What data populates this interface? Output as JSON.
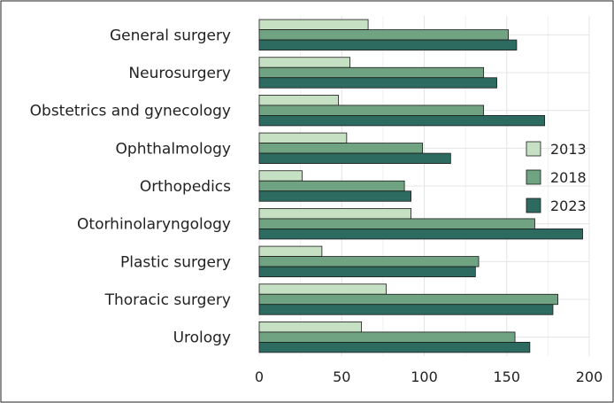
{
  "chart_data": {
    "type": "bar",
    "orientation": "horizontal",
    "categories": [
      "General surgery",
      "Neurosurgery",
      "Obstetrics and gynecology",
      "Ophthalmology",
      "Orthopedics",
      "Otorhinolaryngology",
      "Plastic surgery",
      "Thoracic surgery",
      "Urology"
    ],
    "series": [
      {
        "name": "2013",
        "color": "#c6e0c4",
        "values": [
          66,
          55,
          48,
          53,
          26,
          92,
          38,
          77,
          62
        ]
      },
      {
        "name": "2018",
        "color": "#6fa382",
        "values": [
          151,
          136,
          136,
          99,
          88,
          167,
          133,
          181,
          155
        ]
      },
      {
        "name": "2023",
        "color": "#2d6b61",
        "values": [
          156,
          144,
          173,
          116,
          92,
          196,
          131,
          178,
          164
        ]
      }
    ],
    "xticks": [
      "0",
      "50",
      "100",
      "150",
      "200"
    ],
    "xlim": [
      0,
      200
    ],
    "grid": true,
    "legend_position": "right",
    "title": "",
    "xlabel": "",
    "ylabel": ""
  }
}
